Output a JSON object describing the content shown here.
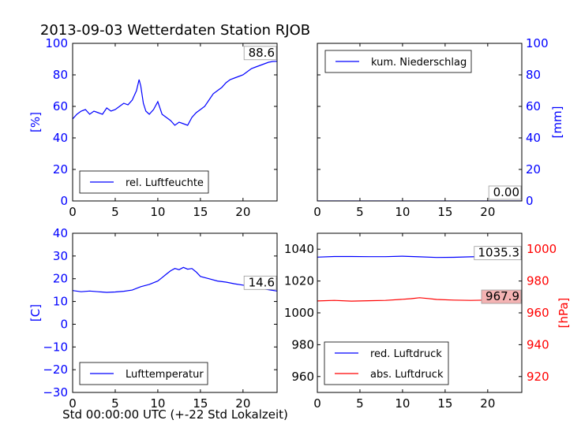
{
  "figure": {
    "title": "2013-09-03 Wetterdaten Station RJOB",
    "xlabel": "Std 00:00:00 UTC (+-22 Std Lokalzeit)"
  },
  "colors": {
    "blue": "#0000ff",
    "red": "#ff0000",
    "annot_red_bg": "#f4b3b3"
  },
  "chart_data": [
    {
      "id": "humidity",
      "type": "line",
      "xlim": [
        0,
        24
      ],
      "ylim": [
        0,
        100
      ],
      "xticks": [
        "0",
        "5",
        "10",
        "15",
        "20"
      ],
      "yticks": [
        "0",
        "20",
        "40",
        "60",
        "80",
        "100"
      ],
      "ylabel": "[%]",
      "legend": {
        "position": "lower-left",
        "entries": [
          "rel. Luftfeuchte"
        ]
      },
      "annotation": "88.6",
      "series": [
        {
          "name": "rel. Luftfeuchte",
          "color": "#0000ff",
          "x": [
            0,
            0.5,
            1,
            1.5,
            2,
            2.5,
            3,
            3.5,
            4,
            4.5,
            5,
            5.5,
            6,
            6.5,
            7,
            7.5,
            7.8,
            8,
            8.3,
            8.6,
            9,
            9.5,
            10,
            10.5,
            11,
            11.5,
            12,
            12.5,
            13,
            13.5,
            14,
            14.5,
            15,
            15.5,
            16,
            16.5,
            17,
            17.5,
            18,
            18.5,
            19,
            19.5,
            20,
            20.5,
            21,
            21.5,
            22,
            22.5,
            23,
            23.5,
            24
          ],
          "y": [
            52,
            55,
            57,
            58,
            55,
            57,
            56,
            55,
            59,
            57,
            58,
            60,
            62,
            61,
            64,
            70,
            77,
            73,
            62,
            57,
            55,
            58,
            63,
            55,
            53,
            51,
            48,
            50,
            49,
            48,
            53,
            56,
            58,
            60,
            64,
            68,
            70,
            72,
            75,
            77,
            78,
            79,
            80,
            82,
            84,
            85,
            86,
            87,
            88,
            88.5,
            88.6
          ]
        }
      ]
    },
    {
      "id": "precipitation",
      "type": "line",
      "xlim": [
        0,
        24
      ],
      "ylim": [
        0,
        100
      ],
      "xticks": [
        "0",
        "5",
        "10",
        "15",
        "20"
      ],
      "yticks": [
        "0",
        "20",
        "40",
        "60",
        "80",
        "100"
      ],
      "ylabel": "[mm]",
      "legend": {
        "position": "upper-left",
        "entries": [
          "kum. Niederschlag"
        ]
      },
      "annotation": "0.00",
      "series": [
        {
          "name": "kum. Niederschlag",
          "color": "#0000ff",
          "x": [
            0,
            24
          ],
          "y": [
            0,
            0
          ]
        }
      ]
    },
    {
      "id": "temperature",
      "type": "line",
      "xlim": [
        0,
        24
      ],
      "ylim": [
        -30,
        40
      ],
      "xticks": [
        "0",
        "5",
        "10",
        "15",
        "20"
      ],
      "yticks": [
        "−30",
        "−20",
        "−10",
        "0",
        "10",
        "20",
        "30",
        "40"
      ],
      "ylabel": "[C]",
      "legend": {
        "position": "lower-left",
        "entries": [
          "Lufttemperatur"
        ]
      },
      "annotation": "14.6",
      "series": [
        {
          "name": "Lufttemperatur",
          "color": "#0000ff",
          "x": [
            0,
            1,
            2,
            3,
            4,
            5,
            6,
            7,
            8,
            9,
            10,
            10.5,
            11,
            11.5,
            12,
            12.5,
            13,
            13.5,
            14,
            14.5,
            15,
            16,
            17,
            18,
            19,
            20,
            21,
            22,
            23,
            24
          ],
          "y": [
            14.8,
            14.3,
            14.6,
            14.3,
            14.0,
            14.2,
            14.5,
            15.0,
            16.5,
            17.5,
            19.0,
            20.5,
            22.0,
            23.5,
            24.5,
            24.0,
            25.0,
            24.2,
            24.5,
            23.0,
            21.0,
            20.0,
            19.0,
            18.5,
            17.8,
            17.2,
            16.5,
            15.8,
            15.2,
            14.6
          ]
        }
      ]
    },
    {
      "id": "pressure",
      "type": "line",
      "xlim": [
        0,
        24
      ],
      "ylim": [
        950,
        1050
      ],
      "ylim_right": [
        910,
        1010
      ],
      "xticks": [
        "0",
        "5",
        "10",
        "15",
        "20"
      ],
      "yticks": [
        "960",
        "980",
        "1000",
        "1020",
        "1040"
      ],
      "yticks_right": [
        "920",
        "940",
        "960",
        "980",
        "1000"
      ],
      "ylabel_right": "[hPa]",
      "legend": {
        "position": "lower-left",
        "entries": [
          "red. Luftdruck",
          "abs. Luftdruck"
        ]
      },
      "annotations": [
        "1035.3",
        "967.9"
      ],
      "series": [
        {
          "name": "red. Luftdruck",
          "color": "#0000ff",
          "x": [
            0,
            2,
            4,
            6,
            8,
            10,
            12,
            14,
            16,
            18,
            20,
            22,
            24
          ],
          "y": [
            1035.0,
            1035.4,
            1035.4,
            1035.3,
            1035.3,
            1035.6,
            1035.2,
            1034.8,
            1034.9,
            1035.2,
            1035.4,
            1035.4,
            1035.3
          ]
        },
        {
          "name": "abs. Luftdruck",
          "color": "#ff0000",
          "axis": "right",
          "x": [
            0,
            2,
            4,
            6,
            8,
            10,
            11,
            12,
            13,
            14,
            16,
            18,
            20,
            22,
            24
          ],
          "y": [
            967.5,
            967.8,
            967.4,
            967.6,
            967.8,
            968.5,
            968.9,
            969.5,
            969.0,
            968.4,
            968.0,
            967.8,
            968.0,
            967.6,
            967.9
          ]
        }
      ]
    }
  ]
}
